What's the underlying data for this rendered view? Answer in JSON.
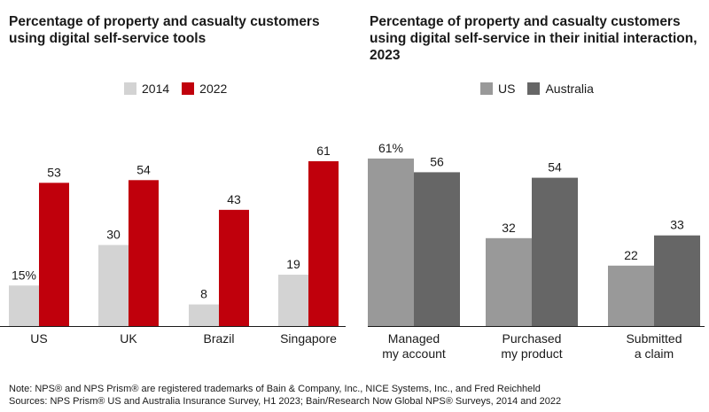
{
  "chart_data": [
    {
      "type": "bar",
      "title": "Percentage of property and casualty customers using digital self-service tools",
      "categories": [
        "US",
        "UK",
        "Brazil",
        "Singapore"
      ],
      "series": [
        {
          "name": "2014",
          "values": [
            15,
            30,
            8,
            19
          ],
          "color": "#d3d3d3"
        },
        {
          "name": "2022",
          "values": [
            53,
            54,
            43,
            61
          ],
          "color": "#c0000c"
        }
      ],
      "value_labels": [
        [
          "15%",
          "30",
          "8",
          "19"
        ],
        [
          "53",
          "54",
          "43",
          "61"
        ]
      ],
      "ylim": [
        0,
        65
      ],
      "legend": "top-center",
      "grid": false
    },
    {
      "type": "bar",
      "title": "Percentage of property and casualty customers using digital self-service in their initial interaction, 2023",
      "categories": [
        [
          "Managed",
          "my account"
        ],
        [
          "Purchased",
          "my product"
        ],
        [
          "Submitted",
          "a claim"
        ]
      ],
      "series": [
        {
          "name": "US",
          "values": [
            61,
            32,
            22
          ],
          "color": "#999999"
        },
        {
          "name": "Australia",
          "values": [
            56,
            54,
            33
          ],
          "color": "#666666"
        }
      ],
      "value_labels": [
        [
          "61%",
          "32",
          "22"
        ],
        [
          "56",
          "54",
          "33"
        ]
      ],
      "ylim": [
        0,
        65
      ],
      "legend": "top-center",
      "grid": false
    }
  ],
  "footnotes": {
    "note": "Note: NPS® and NPS Prism® are registered trademarks of Bain & Company, Inc., NICE Systems, Inc., and Fred Reichheld",
    "sources": "Sources: NPS Prism® US and Australia Insurance Survey, H1 2023; Bain/Research Now Global NPS® Surveys, 2014 and 2022"
  }
}
